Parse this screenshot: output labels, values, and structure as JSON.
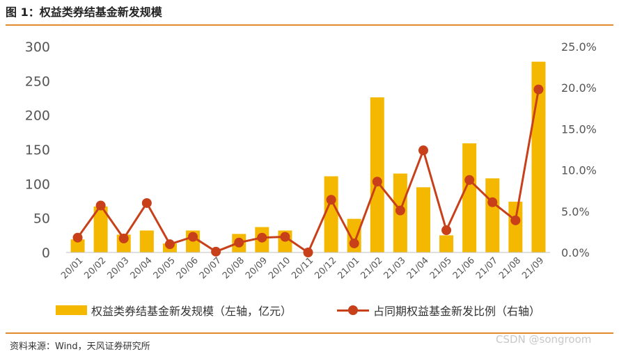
{
  "title": "图 1：权益类券结基金新发规模",
  "source": "资料来源：Wind，天风证券研究所",
  "watermark": "CSDN @songroom",
  "colors": {
    "bar": "#f5b800",
    "line": "#c8401a",
    "rule": "#e08a2c",
    "axis_text": "#555555"
  },
  "chart_data": {
    "type": "bar+line",
    "categories": [
      "20/01",
      "20/02",
      "20/03",
      "20/04",
      "20/05",
      "20/06",
      "20/07",
      "20/08",
      "20/09",
      "20/10",
      "20/11",
      "20/12",
      "21/01",
      "21/02",
      "21/03",
      "21/04",
      "21/05",
      "21/06",
      "21/07",
      "21/08",
      "21/09"
    ],
    "left_axis": {
      "ylim": [
        0,
        300
      ],
      "ticks": [
        "0",
        "50",
        "100",
        "150",
        "200",
        "250",
        "300"
      ]
    },
    "right_axis": {
      "ylim": [
        0,
        25
      ],
      "ticks": [
        "0.0%",
        "5.0%",
        "10.0%",
        "15.0%",
        "20.0%",
        "25.0%"
      ]
    },
    "series": [
      {
        "name": "权益类券结基金新发规模（左轴，亿元）",
        "type": "bar",
        "axis": "left",
        "values": [
          19,
          67,
          26,
          32,
          13,
          32,
          0,
          27,
          37,
          32,
          0,
          111,
          49,
          226,
          115,
          95,
          25,
          159,
          108,
          74,
          278
        ]
      },
      {
        "name": "占同期权益基金新发比例（右轴）",
        "type": "line",
        "axis": "right",
        "values": [
          1.8,
          5.7,
          1.7,
          6.0,
          1.0,
          1.9,
          0.1,
          1.2,
          1.8,
          1.9,
          0.0,
          6.4,
          1.1,
          8.6,
          5.1,
          12.4,
          2.7,
          8.8,
          6.1,
          3.9,
          19.8
        ]
      }
    ],
    "legend_position": "bottom",
    "grid": false
  }
}
